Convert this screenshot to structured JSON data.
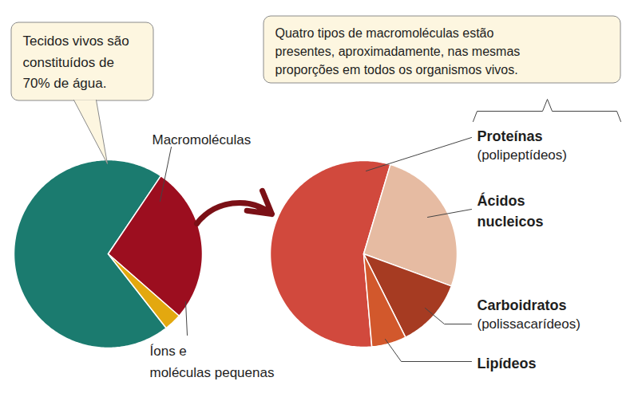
{
  "chart_data": [
    {
      "type": "pie",
      "categories": [
        null,
        "Macromoléculas",
        "Íons e\nmoléculas pequenas"
      ],
      "values": [
        70,
        27,
        3
      ],
      "colors": [
        "#1b7b6f",
        "#9c0e1f",
        "#e3a80f"
      ],
      "annotations": [
        "Tecidos vivos são\nconstituídos de\n70% de água."
      ]
    },
    {
      "type": "pie",
      "categories": [
        "Proteínas",
        "Ácidos\nnucleicos",
        "Carboidratos",
        "Lipídeos"
      ],
      "sublabels": [
        "(polipeptídeos)",
        null,
        "(polissacarídeos)",
        null
      ],
      "values": [
        56,
        26,
        12,
        6
      ],
      "colors": [
        "#d1493d",
        "#e6bba2",
        "#a63b22",
        "#d2582c"
      ],
      "annotations": [
        "Quatro tipos de macromoléculas estão\npresentes, aproximadamente, nas mesmas\nproporções em todos os organismos vivos."
      ]
    }
  ]
}
